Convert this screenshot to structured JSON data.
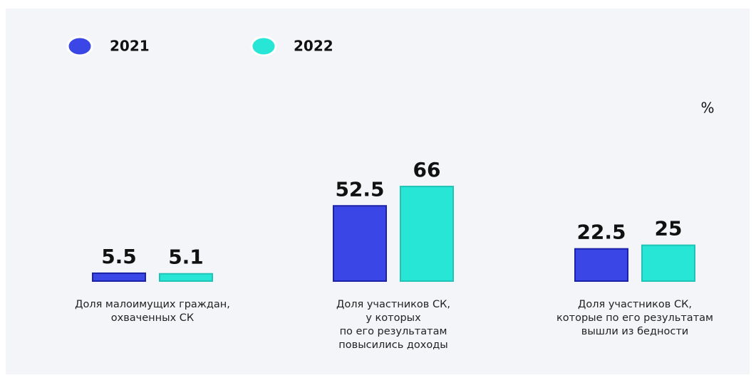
{
  "chart_data": {
    "type": "bar",
    "unit": "%",
    "categories": [
      "Доля малоимущих граждан,\nохваченных СК",
      "Доля участников СК,\nу которых\nпо его результатам\nповысились доходы",
      "Доля участников СК,\nкоторые по его результатам\nвышли из бедности"
    ],
    "series": [
      {
        "name": "2021",
        "color": "#3a46e6",
        "values": [
          5.5,
          52.5,
          22.5
        ]
      },
      {
        "name": "2022",
        "color": "#27e6d6",
        "values": [
          5.1,
          66,
          25
        ]
      }
    ],
    "ylim": [
      0,
      70
    ]
  }
}
